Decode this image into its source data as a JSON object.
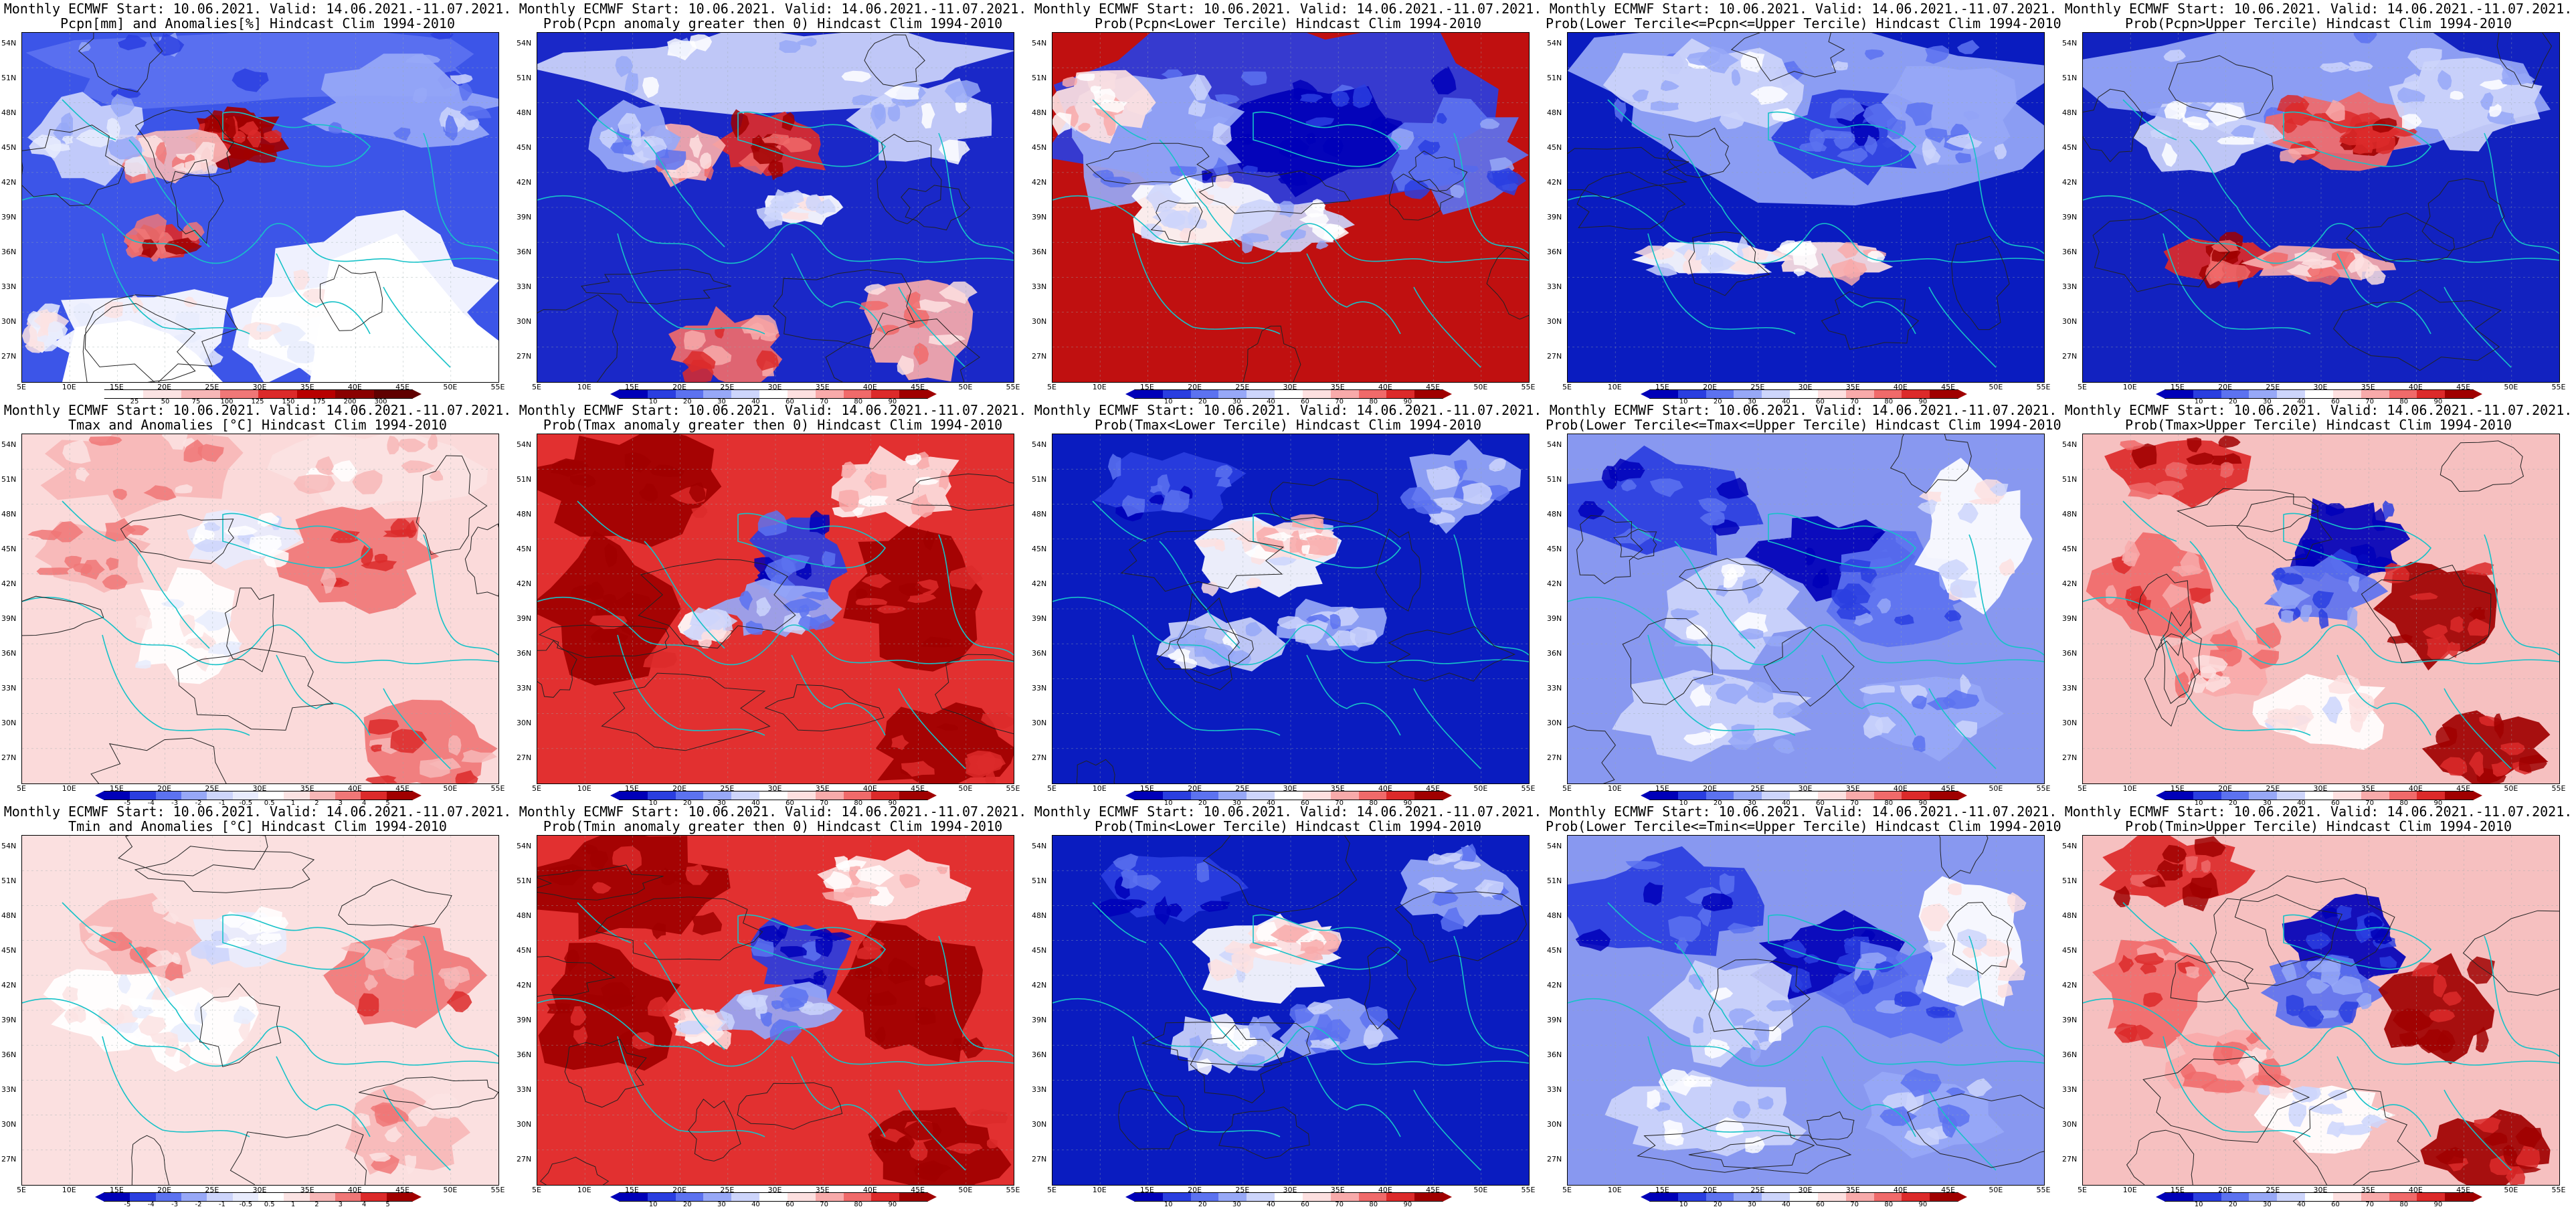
{
  "colors": {
    "prob_scale": [
      "#0000b8",
      "#2a3ee0",
      "#5c72f0",
      "#97a8f7",
      "#cdd5fb",
      "#ffffff",
      "#fde0e0",
      "#f8aaaa",
      "#f06a6a",
      "#dc2a2a",
      "#a00000"
    ],
    "anom_scale": [
      "#0000b8",
      "#2a3ee0",
      "#5c72f0",
      "#97a8f7",
      "#cdd5fb",
      "#e8ecfd",
      "#ffffff",
      "#fbe3e3",
      "#f7b7b7",
      "#f07777",
      "#dc2a2a",
      "#a00000"
    ],
    "coast": "#17c2c8",
    "contour": "#222222",
    "pcpn_scale": [
      "#ffffff",
      "#fbe3e3",
      "#f7b7b7",
      "#f07777",
      "#dc2a2a",
      "#b80000",
      "#8a0000",
      "#600000"
    ]
  },
  "axes": {
    "lat_labels": [
      "54N",
      "51N",
      "48N",
      "45N",
      "42N",
      "39N",
      "36N",
      "33N",
      "30N",
      "27N"
    ],
    "lon_labels": [
      "5E",
      "10E",
      "15E",
      "20E",
      "25E",
      "30E",
      "35E",
      "40E",
      "45E",
      "50E",
      "55E"
    ]
  },
  "colorbars": {
    "prob_ticks": [
      "10",
      "20",
      "30",
      "40",
      "60",
      "70",
      "80",
      "90"
    ],
    "anom_ticks": [
      "-5",
      "-4",
      "-3",
      "-2",
      "-1",
      "-0.5",
      "0.5",
      "1",
      "2",
      "3",
      "4",
      "5"
    ],
    "pcpn_ticks": [
      "25",
      "50",
      "75",
      "100",
      "125",
      "150",
      "175",
      "200",
      "300"
    ]
  },
  "panels": [
    {
      "title1": "Monthly ECMWF Start: 10.06.2021. Valid: 14.06.2021.-11.07.2021.",
      "title2": "Pcpn[mm] and Anomalies[%] Hindcast Clim 1994-2010",
      "scale": "pcpn",
      "style": "pcpn_anom"
    },
    {
      "title1": "Monthly ECMWF Start: 10.06.2021. Valid: 14.06.2021.-11.07.2021.",
      "title2": "Prob(Pcpn anomaly greater then 0) Hindcast Clim 1994-2010",
      "scale": "prob",
      "style": "pcpn_gt0"
    },
    {
      "title1": "Monthly ECMWF Start: 10.06.2021. Valid: 14.06.2021.-11.07.2021.",
      "title2": "Prob(Pcpn<Lower Tercile) Hindcast Clim 1994-2010",
      "scale": "prob",
      "style": "pcpn_lower"
    },
    {
      "title1": "Monthly ECMWF Start: 10.06.2021. Valid: 14.06.2021.-11.07.2021.",
      "title2": "Prob(Lower Tercile<=Pcpn<=Upper Tercile) Hindcast Clim 1994-2010",
      "scale": "prob",
      "style": "pcpn_mid"
    },
    {
      "title1": "Monthly ECMWF Start: 10.06.2021. Valid: 14.06.2021.-11.07.2021.",
      "title2": "Prob(Pcpn>Upper Tercile) Hindcast Clim 1994-2010",
      "scale": "prob",
      "style": "pcpn_upper"
    },
    {
      "title1": "Monthly ECMWF Start: 10.06.2021. Valid: 14.06.2021.-11.07.2021.",
      "title2": "Tmax and Anomalies [°C] Hindcast Clim 1994-2010",
      "scale": "anom",
      "style": "t_anom"
    },
    {
      "title1": "Monthly ECMWF Start: 10.06.2021. Valid: 14.06.2021.-11.07.2021.",
      "title2": "Prob(Tmax anomaly greater then 0) Hindcast Clim 1994-2010",
      "scale": "prob",
      "style": "t_gt0"
    },
    {
      "title1": "Monthly ECMWF Start: 10.06.2021. Valid: 14.06.2021.-11.07.2021.",
      "title2": "Prob(Tmax<Lower Tercile) Hindcast Clim 1994-2010",
      "scale": "prob",
      "style": "t_lower"
    },
    {
      "title1": "Monthly ECMWF Start: 10.06.2021. Valid: 14.06.2021.-11.07.2021.",
      "title2": "Prob(Lower Tercile<=Tmax<=Upper Tercile) Hindcast Clim 1994-2010",
      "scale": "prob",
      "style": "t_mid"
    },
    {
      "title1": "Monthly ECMWF Start: 10.06.2021. Valid: 14.06.2021.-11.07.2021.",
      "title2": "Prob(Tmax>Upper Tercile) Hindcast Clim 1994-2010",
      "scale": "prob",
      "style": "t_upper"
    },
    {
      "title1": "Monthly ECMWF Start: 10.06.2021. Valid: 14.06.2021.-11.07.2021.",
      "title2": "Tmin and Anomalies [°C] Hindcast Clim 1994-2010",
      "scale": "anom",
      "style": "tmin_anom"
    },
    {
      "title1": "Monthly ECMWF Start: 10.06.2021. Valid: 14.06.2021.-11.07.2021.",
      "title2": "Prob(Tmin anomaly greater then 0) Hindcast Clim 1994-2010",
      "scale": "prob",
      "style": "t_gt0"
    },
    {
      "title1": "Monthly ECMWF Start: 10.06.2021. Valid: 14.06.2021.-11.07.2021.",
      "title2": "Prob(Tmin<Lower Tercile) Hindcast Clim 1994-2010",
      "scale": "prob",
      "style": "t_lower"
    },
    {
      "title1": "Monthly ECMWF Start: 10.06.2021. Valid: 14.06.2021.-11.07.2021.",
      "title2": "Prob(Lower Tercile<=Tmin<=Upper Tercile) Hindcast Clim 1994-2010",
      "scale": "prob",
      "style": "t_mid"
    },
    {
      "title1": "Monthly ECMWF Start: 10.06.2021. Valid: 14.06.2021.-11.07.2021.",
      "title2": "Prob(Tmin>Upper Tercile) Hindcast Clim 1994-2010",
      "scale": "prob",
      "style": "t_upper"
    }
  ]
}
